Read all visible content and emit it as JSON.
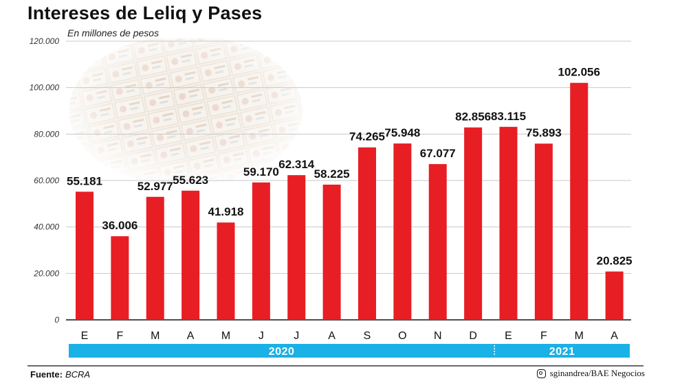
{
  "header": {
    "title": "Intereses de Leliq y Pases",
    "subtitle": "En millones de pesos"
  },
  "footer": {
    "source_label": "Fuente:",
    "source_value": "BCRA",
    "credit": "sginandrea/BAE Negocios",
    "credit_icon": "instagram-icon"
  },
  "colors": {
    "bar": "#e81e25",
    "year_band": "#1ab1e6",
    "grid": "#c8c8c8"
  },
  "chart_data": {
    "type": "bar",
    "categories": [
      "E",
      "F",
      "M",
      "A",
      "M",
      "J",
      "J",
      "A",
      "S",
      "O",
      "N",
      "D",
      "E",
      "F",
      "M",
      "A"
    ],
    "values": [
      55181,
      36006,
      52977,
      55623,
      41918,
      59170,
      62314,
      58225,
      74265,
      75948,
      67077,
      82856,
      83115,
      75893,
      102056,
      20825
    ],
    "value_labels": [
      "55.181",
      "36.006",
      "52.977",
      "55.623",
      "41.918",
      "59.170",
      "62.314",
      "58.225",
      "74.265",
      "75.948",
      "67.077",
      "82.856",
      "83.115",
      "75.893",
      "102.056",
      "20.825"
    ],
    "ylim": [
      0,
      120000
    ],
    "yticks": [
      0,
      20000,
      40000,
      60000,
      80000,
      100000,
      120000
    ],
    "ytick_labels": [
      "0",
      "20.000",
      "40.000",
      "60.000",
      "80.000",
      "100.000",
      "120.000"
    ],
    "grid": true,
    "groups": [
      {
        "label": "2020",
        "count": 12
      },
      {
        "label": "2021",
        "count": 4
      }
    ]
  }
}
